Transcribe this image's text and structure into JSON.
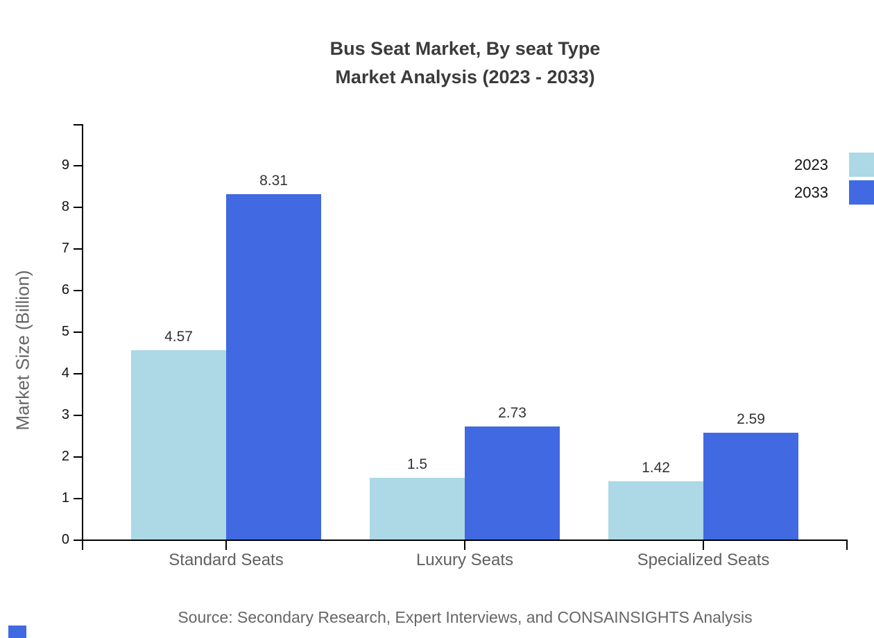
{
  "title": {
    "line1": "Bus Seat Market, By seat Type",
    "line2": "Market Analysis (2023 - 2033)"
  },
  "source": "Source: Secondary Research, Expert Interviews, and CONSAINSIGHTS Analysis",
  "colors": {
    "series_2023": "#add8e6",
    "series_2033": "#4169e1",
    "axis": "#000000",
    "title_text": "#3b3b3b",
    "muted_text": "#666666",
    "category_text": "#606060",
    "value_text": "#333333"
  },
  "chart_data": {
    "type": "bar",
    "title": "Bus Seat Market, By seat Type — Market Analysis (2023 - 2033)",
    "categories": [
      "Standard Seats",
      "Luxury Seats",
      "Specialized Seats"
    ],
    "series": [
      {
        "name": "2023",
        "color": "#add8e6",
        "values": [
          4.57,
          1.5,
          1.42
        ]
      },
      {
        "name": "2033",
        "color": "#4169e1",
        "values": [
          8.31,
          2.73,
          2.59
        ]
      }
    ],
    "xlabel": "",
    "ylabel": "Market Size (Billion)",
    "ylim": [
      0,
      10
    ],
    "yticks": [
      0,
      1,
      2,
      3,
      4,
      5,
      6,
      7,
      8,
      9
    ],
    "grid": false,
    "legend_position": "top-right",
    "value_labels": true
  }
}
